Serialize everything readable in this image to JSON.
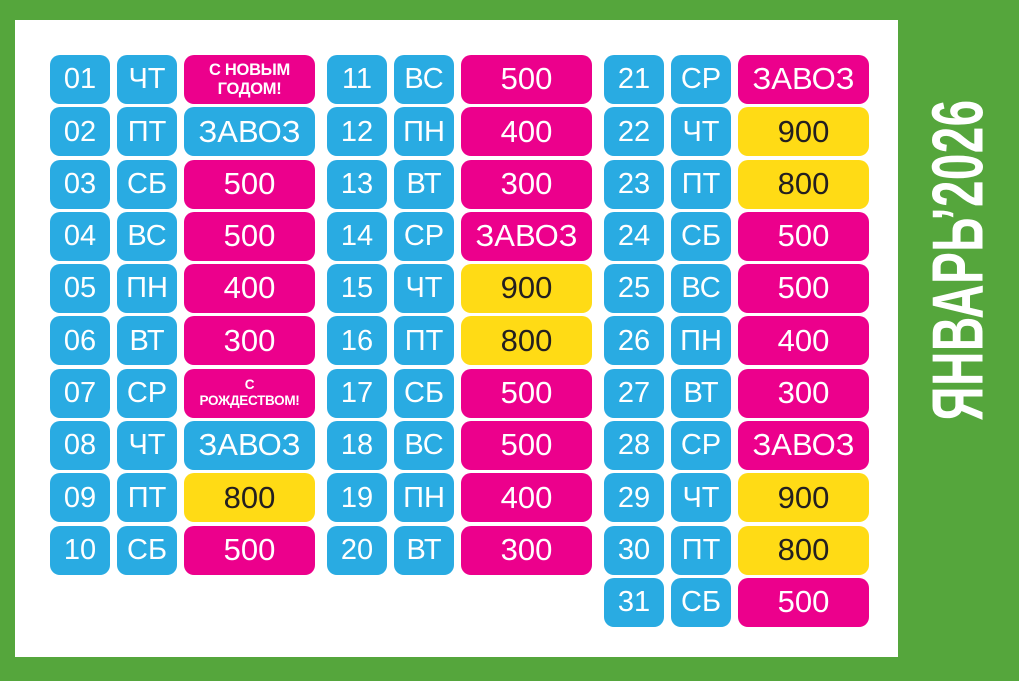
{
  "title": {
    "month_year": "ЯНВАРЬ’2026"
  },
  "colors": {
    "frame_green": "#55A63C",
    "panel_white": "#FFFFFF",
    "chip_blue": "#29ABE2",
    "chip_magenta": "#EC008C",
    "chip_yellow": "#FFDB15",
    "text_white": "#FFFFFF",
    "text_dark": "#231F20"
  },
  "calendar": {
    "columns": [
      {
        "name": "days-01-10",
        "entries": [
          {
            "day": "01",
            "weekday": "ЧТ",
            "value": "С НОВЫМ\nГОДОМ!",
            "value_color": "magenta",
            "value_size": "two-line-large"
          },
          {
            "day": "02",
            "weekday": "ПТ",
            "value": "ЗАВОЗ",
            "value_color": "blue",
            "value_size": "large"
          },
          {
            "day": "03",
            "weekday": "СБ",
            "value": "500",
            "value_color": "magenta",
            "value_size": "large"
          },
          {
            "day": "04",
            "weekday": "ВС",
            "value": "500",
            "value_color": "magenta",
            "value_size": "large"
          },
          {
            "day": "05",
            "weekday": "ПН",
            "value": "400",
            "value_color": "magenta",
            "value_size": "large"
          },
          {
            "day": "06",
            "weekday": "ВТ",
            "value": "300",
            "value_color": "magenta",
            "value_size": "large"
          },
          {
            "day": "07",
            "weekday": "СР",
            "value": "С\nРОЖДЕСТВОМ!",
            "value_color": "magenta",
            "value_size": "two-line-small"
          },
          {
            "day": "08",
            "weekday": "ЧТ",
            "value": "ЗАВОЗ",
            "value_color": "blue",
            "value_size": "large"
          },
          {
            "day": "09",
            "weekday": "ПТ",
            "value": "800",
            "value_color": "yellow",
            "value_size": "large"
          },
          {
            "day": "10",
            "weekday": "СБ",
            "value": "500",
            "value_color": "magenta",
            "value_size": "large"
          }
        ]
      },
      {
        "name": "days-11-20",
        "entries": [
          {
            "day": "11",
            "weekday": "ВС",
            "value": "500",
            "value_color": "magenta",
            "value_size": "large"
          },
          {
            "day": "12",
            "weekday": "ПН",
            "value": "400",
            "value_color": "magenta",
            "value_size": "large"
          },
          {
            "day": "13",
            "weekday": "ВТ",
            "value": "300",
            "value_color": "magenta",
            "value_size": "large"
          },
          {
            "day": "14",
            "weekday": "СР",
            "value": "ЗАВОЗ",
            "value_color": "magenta",
            "value_size": "large"
          },
          {
            "day": "15",
            "weekday": "ЧТ",
            "value": "900",
            "value_color": "yellow",
            "value_size": "large"
          },
          {
            "day": "16",
            "weekday": "ПТ",
            "value": "800",
            "value_color": "yellow",
            "value_size": "large"
          },
          {
            "day": "17",
            "weekday": "СБ",
            "value": "500",
            "value_color": "magenta",
            "value_size": "large"
          },
          {
            "day": "18",
            "weekday": "ВС",
            "value": "500",
            "value_color": "magenta",
            "value_size": "large"
          },
          {
            "day": "19",
            "weekday": "ПН",
            "value": "400",
            "value_color": "magenta",
            "value_size": "large"
          },
          {
            "day": "20",
            "weekday": "ВТ",
            "value": "300",
            "value_color": "magenta",
            "value_size": "large"
          }
        ]
      },
      {
        "name": "days-21-31",
        "entries": [
          {
            "day": "21",
            "weekday": "СР",
            "value": "ЗАВОЗ",
            "value_color": "magenta",
            "value_size": "large"
          },
          {
            "day": "22",
            "weekday": "ЧТ",
            "value": "900",
            "value_color": "yellow",
            "value_size": "large"
          },
          {
            "day": "23",
            "weekday": "ПТ",
            "value": "800",
            "value_color": "yellow",
            "value_size": "large"
          },
          {
            "day": "24",
            "weekday": "СБ",
            "value": "500",
            "value_color": "magenta",
            "value_size": "large"
          },
          {
            "day": "25",
            "weekday": "ВС",
            "value": "500",
            "value_color": "magenta",
            "value_size": "large"
          },
          {
            "day": "26",
            "weekday": "ПН",
            "value": "400",
            "value_color": "magenta",
            "value_size": "large"
          },
          {
            "day": "27",
            "weekday": "ВТ",
            "value": "300",
            "value_color": "magenta",
            "value_size": "large"
          },
          {
            "day": "28",
            "weekday": "СР",
            "value": "ЗАВОЗ",
            "value_color": "magenta",
            "value_size": "large"
          },
          {
            "day": "29",
            "weekday": "ЧТ",
            "value": "900",
            "value_color": "yellow",
            "value_size": "large"
          },
          {
            "day": "30",
            "weekday": "ПТ",
            "value": "800",
            "value_color": "yellow",
            "value_size": "large"
          },
          {
            "day": "31",
            "weekday": "СБ",
            "value": "500",
            "value_color": "magenta",
            "value_size": "large"
          }
        ]
      }
    ]
  }
}
